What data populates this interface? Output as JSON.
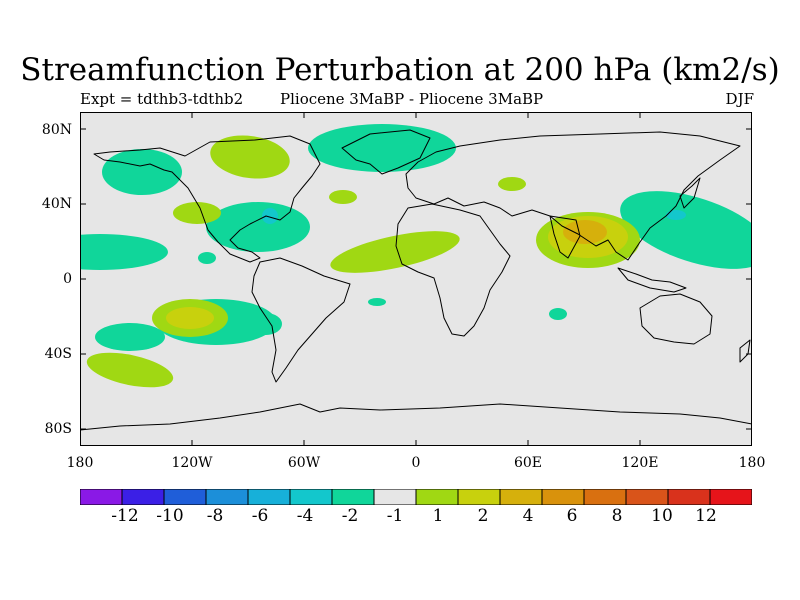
{
  "title": "Streamfunction Perturbation at 200 hPa (km2/s)",
  "left_label": "Expt = tdthb3-tdthb2",
  "center_label": "Pliocene   3MaBP - Pliocene   3MaBP",
  "right_label": "DJF",
  "lat_labels": [
    "80N",
    "40N",
    "0",
    "40S",
    "80S"
  ],
  "lon_labels": [
    "180",
    "120W",
    "60W",
    "0",
    "60E",
    "120E",
    "180"
  ],
  "colorbar": {
    "colors": [
      "#8a19e6",
      "#3b1fe6",
      "#1f5ed9",
      "#1c8fd9",
      "#17b0d9",
      "#13c7cc",
      "#10d69a",
      "#e6e6e6",
      "#a0d813",
      "#c8d10d",
      "#d6b00c",
      "#d9920c",
      "#d97010",
      "#d9541a",
      "#d9321c",
      "#e6141a"
    ],
    "labels": [
      "-12",
      "-10",
      "-8",
      "-6",
      "-4",
      "-2",
      "-1",
      "1",
      "2",
      "4",
      "6",
      "8",
      "10",
      "12"
    ]
  },
  "map_data": {
    "background_color": "#e6e6e6",
    "anomalies": [
      {
        "region": "North Pacific",
        "lon": -148,
        "lat": 56,
        "level": -1
      },
      {
        "region": "Alaska / NE Pacific",
        "lon": -113,
        "lat": 64,
        "level": 1
      },
      {
        "region": "Greenland / N Atlantic",
        "lon": -18,
        "lat": 70,
        "level": -1
      },
      {
        "region": "Western Siberia",
        "lon": 47,
        "lat": 50,
        "level": 1
      },
      {
        "region": "North Atlantic",
        "lon": -40,
        "lat": 44,
        "level": 1
      },
      {
        "region": "Western US",
        "lon": -116,
        "lat": 35,
        "level": 1
      },
      {
        "region": "Gulf of Mexico / Caribbean",
        "lon": -76,
        "lat": 28,
        "level": -1
      },
      {
        "region": "Eastern Tropical Pacific",
        "lon": -180,
        "lat": 15,
        "level": -1
      },
      {
        "region": "Central America",
        "lon": -108,
        "lat": 11,
        "level": -1
      },
      {
        "region": "Tropical Atlantic / Africa",
        "lon": -5,
        "lat": 14,
        "level": 1
      },
      {
        "region": "South Asia / Tibet",
        "lon": 92,
        "lat": 20,
        "level": 4
      },
      {
        "region": "East Asia / Japan jet",
        "lon": 150,
        "lat": 26,
        "level": -1
      },
      {
        "region": "Kuroshio",
        "lon": 135,
        "lat": 34,
        "level": -2
      },
      {
        "region": "South Pacific",
        "lon": -122,
        "lat": -20,
        "level": 2
      },
      {
        "region": "SW Pacific",
        "lon": -156,
        "lat": -31,
        "level": -1
      },
      {
        "region": "South America east",
        "lon": -76,
        "lat": -24,
        "level": -1
      },
      {
        "region": "Southern Ocean Pacific",
        "lon": -170,
        "lat": -50,
        "level": 1
      },
      {
        "region": "South Atlantic",
        "lon": -20,
        "lat": -12,
        "level": -1
      },
      {
        "region": "Indian Ocean",
        "lon": 75,
        "lat": -18,
        "level": -1
      }
    ]
  }
}
